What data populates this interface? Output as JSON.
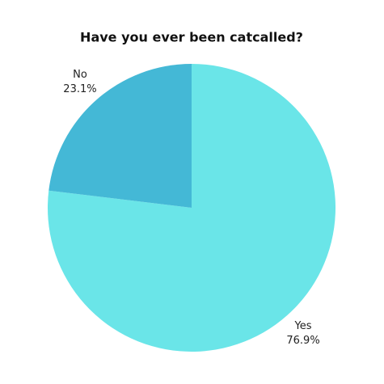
{
  "chart_data": {
    "type": "pie",
    "title": "Have you ever been catcalled?",
    "categories": [
      "Yes",
      "No"
    ],
    "values": [
      76.9,
      23.1
    ],
    "value_labels": [
      "76.9%",
      "23.1%"
    ],
    "colors": [
      "#6ae5e8",
      "#44b8d6"
    ]
  }
}
